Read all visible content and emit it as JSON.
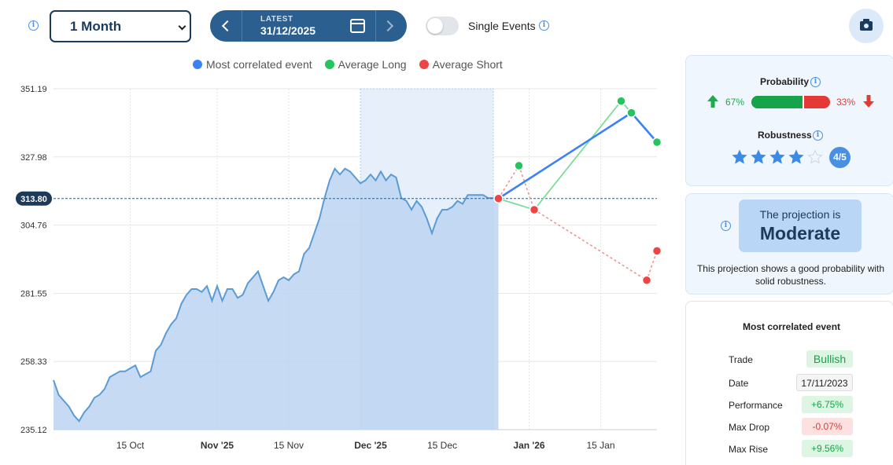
{
  "toolbar": {
    "period": "1 Month",
    "latest_label": "LATEST",
    "latest_date": "31/12/2025",
    "single_events_label": "Single Events"
  },
  "legend": [
    {
      "label": "Most correlated event",
      "color": "#3b82f6"
    },
    {
      "label": "Average Long",
      "color": "#22c55e"
    },
    {
      "label": "Average Short",
      "color": "#ef4444"
    }
  ],
  "chart_data": {
    "type": "line",
    "y_ticks": [
      "351.19",
      "327.98",
      "304.76",
      "281.55",
      "258.33",
      "235.12"
    ],
    "ylim": [
      235.12,
      351.19
    ],
    "x_ticks": [
      {
        "label": "15 Oct",
        "bold": false,
        "t": 15
      },
      {
        "label": "Nov '25",
        "bold": true,
        "t": 32
      },
      {
        "label": "15 Nov",
        "bold": false,
        "t": 46
      },
      {
        "label": "Dec '25",
        "bold": true,
        "t": 62
      },
      {
        "label": "15 Dec",
        "bold": false,
        "t": 76
      },
      {
        "label": "Jan '26",
        "bold": true,
        "t": 93
      },
      {
        "label": "15 Jan",
        "bold": false,
        "t": 107
      }
    ],
    "current_value": "313.80",
    "price_series": {
      "name": "",
      "points": [
        [
          0,
          252
        ],
        [
          1,
          247
        ],
        [
          2,
          245
        ],
        [
          3,
          243
        ],
        [
          4,
          240
        ],
        [
          5,
          238
        ],
        [
          6,
          241
        ],
        [
          7,
          243
        ],
        [
          8,
          246
        ],
        [
          9,
          247
        ],
        [
          10,
          249
        ],
        [
          11,
          253
        ],
        [
          12,
          254
        ],
        [
          13,
          255
        ],
        [
          14,
          255
        ],
        [
          15,
          256
        ],
        [
          16,
          257
        ],
        [
          17,
          253
        ],
        [
          18,
          254
        ],
        [
          19,
          255
        ],
        [
          20,
          262
        ],
        [
          21,
          264
        ],
        [
          22,
          268
        ],
        [
          23,
          271
        ],
        [
          24,
          273
        ],
        [
          25,
          278
        ],
        [
          26,
          281
        ],
        [
          27,
          283
        ],
        [
          28,
          283
        ],
        [
          29,
          282
        ],
        [
          30,
          284
        ],
        [
          31,
          279
        ],
        [
          32,
          284
        ],
        [
          33,
          279
        ],
        [
          34,
          283
        ],
        [
          35,
          283
        ],
        [
          36,
          280
        ],
        [
          37,
          281
        ],
        [
          38,
          285
        ],
        [
          39,
          287
        ],
        [
          40,
          289
        ],
        [
          41,
          284
        ],
        [
          42,
          279
        ],
        [
          43,
          282
        ],
        [
          44,
          286
        ],
        [
          45,
          287
        ],
        [
          46,
          286
        ],
        [
          47,
          288
        ],
        [
          48,
          289
        ],
        [
          49,
          295
        ],
        [
          50,
          297
        ],
        [
          51,
          302
        ],
        [
          52,
          307
        ],
        [
          53,
          314
        ],
        [
          54,
          320
        ],
        [
          55,
          324
        ],
        [
          56,
          322
        ],
        [
          57,
          324
        ],
        [
          58,
          323
        ],
        [
          59,
          321
        ],
        [
          60,
          319
        ],
        [
          61,
          320
        ],
        [
          62,
          322
        ],
        [
          63,
          320
        ],
        [
          64,
          323
        ],
        [
          65,
          320
        ],
        [
          66,
          322
        ],
        [
          67,
          321
        ],
        [
          68,
          314
        ],
        [
          69,
          313
        ],
        [
          70,
          310
        ],
        [
          71,
          313
        ],
        [
          72,
          311
        ],
        [
          73,
          307
        ],
        [
          74,
          302
        ],
        [
          75,
          307
        ],
        [
          76,
          310
        ],
        [
          77,
          310
        ],
        [
          78,
          311
        ],
        [
          79,
          313
        ],
        [
          80,
          312
        ],
        [
          81,
          315
        ],
        [
          82,
          315
        ],
        [
          83,
          315
        ],
        [
          84,
          315
        ],
        [
          85,
          314
        ],
        [
          86,
          314
        ],
        [
          87,
          313.8
        ]
      ]
    },
    "shaded_window": [
      60,
      86
    ],
    "most_correlated": {
      "name": "Most correlated event",
      "points": [
        [
          87,
          313.8
        ],
        [
          113,
          343
        ],
        [
          118,
          333
        ]
      ]
    },
    "average_long": {
      "name": "Average Long",
      "points": [
        [
          87,
          313.8
        ],
        [
          91,
          325
        ],
        [
          94,
          310
        ],
        [
          111,
          347
        ],
        [
          113,
          343
        ],
        [
          118,
          333
        ]
      ]
    },
    "average_short": {
      "name": "Average Short",
      "points": [
        [
          87,
          313.8
        ],
        [
          94,
          310
        ],
        [
          116,
          286
        ],
        [
          118,
          296
        ]
      ]
    }
  },
  "probability": {
    "title": "Probability",
    "up_pct": "67%",
    "down_pct": "33%",
    "up_fraction": 0.67,
    "robustness_title": "Robustness",
    "robustness_value": 4,
    "robustness_max": 5,
    "robustness_label": "4/5"
  },
  "projection": {
    "subtitle": "The projection is",
    "value": "Moderate",
    "description": "This projection shows a good probability with solid robustness."
  },
  "event": {
    "title": "Most correlated event",
    "rows": [
      {
        "label": "Trade",
        "value": "Bullish",
        "style": "green"
      },
      {
        "label": "Date",
        "value": "17/11/2023",
        "style": "date"
      },
      {
        "label": "Performance",
        "value": "+6.75%",
        "style": "green"
      },
      {
        "label": "Max Drop",
        "value": "-0.07%",
        "style": "red"
      },
      {
        "label": "Max Rise",
        "value": "+9.56%",
        "style": "green"
      }
    ]
  }
}
